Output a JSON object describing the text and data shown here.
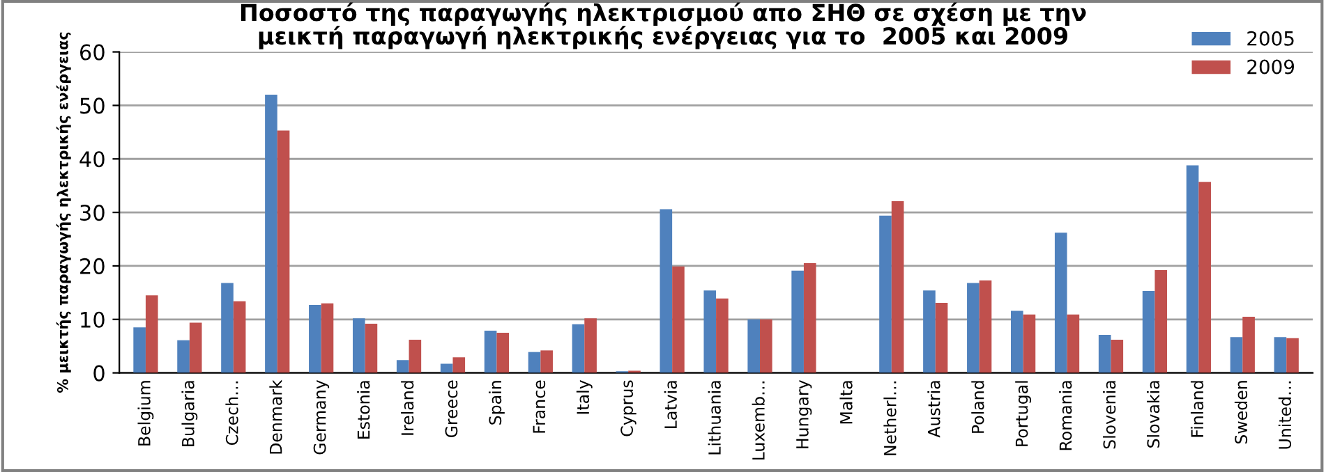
{
  "chart_data": {
    "type": "bar",
    "title": "Ποσοστό της παραγωγής ηλεκτρισμού απο ΣΗΘ σε σχέση με την\nμεικτή παραγωγή ηλεκτρικής ενέργειας για το  2005 και 2009",
    "ylabel": "% μεικτής παραγωγής ηλεκτρικής ενέργειας",
    "categories": [
      "Belgium",
      "Bulgaria",
      "Czech…",
      "Denmark",
      "Germany",
      "Estonia",
      "Ireland",
      "Greece",
      "Spain",
      "France",
      "Italy",
      "Cyprus",
      "Latvia",
      "Lithuania",
      "Luxemb…",
      "Hungary",
      "Malta",
      "Netherl…",
      "Austria",
      "Poland",
      "Portugal",
      "Romania",
      "Slovenia",
      "Slovakia",
      "Finland",
      "Sweden",
      "United…"
    ],
    "series": [
      {
        "name": "2005",
        "color": "#4f81bd",
        "values": [
          8.5,
          6.1,
          16.8,
          52,
          12.7,
          10.2,
          2.4,
          1.7,
          7.9,
          3.9,
          9.1,
          0.3,
          30.6,
          15.4,
          10,
          19.1,
          0,
          29.4,
          15.4,
          16.8,
          11.6,
          26.2,
          7.1,
          15.3,
          38.8,
          6.7,
          6.7
        ]
      },
      {
        "name": "2009",
        "color": "#c0504d",
        "values": [
          14.5,
          9.4,
          13.4,
          45.3,
          13,
          9.2,
          6.2,
          2.9,
          7.5,
          4.2,
          10.2,
          0.4,
          19.9,
          13.9,
          10,
          20.5,
          0,
          32.1,
          13.1,
          17.3,
          10.9,
          10.9,
          6.2,
          19.2,
          35.7,
          10.5,
          6.5
        ]
      }
    ],
    "ylim": [
      0,
      60
    ],
    "yticks": [
      0,
      10,
      20,
      30,
      40,
      50,
      60
    ],
    "grid": "y",
    "legend": "top right"
  }
}
